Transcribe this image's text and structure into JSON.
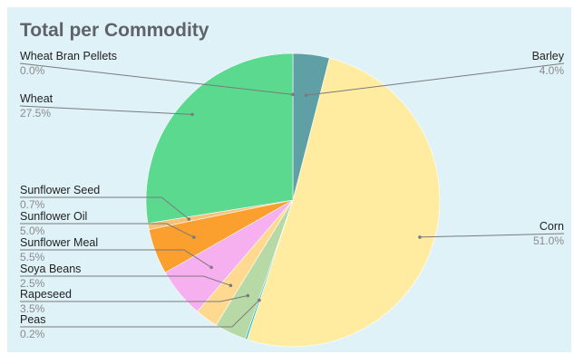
{
  "chart_data": {
    "type": "pie",
    "title": "Total per Commodity",
    "slices": [
      {
        "label": "Barley",
        "percent_label": "4.0%",
        "value": 4.0,
        "color": "#5f9fa6"
      },
      {
        "label": "Corn",
        "percent_label": "51.0%",
        "value": 51.0,
        "color": "#ffeca1"
      },
      {
        "label": "Peas",
        "percent_label": "0.2%",
        "value": 0.2,
        "color": "#1fb7c7"
      },
      {
        "label": "Rapeseed",
        "percent_label": "3.5%",
        "value": 3.5,
        "color": "#b7d9a5"
      },
      {
        "label": "Soya Beans",
        "percent_label": "2.5%",
        "value": 2.5,
        "color": "#ffd98f"
      },
      {
        "label": "Sunflower Meal",
        "percent_label": "5.5%",
        "value": 5.5,
        "color": "#f6b0f0"
      },
      {
        "label": "Sunflower Oil",
        "percent_label": "5.0%",
        "value": 5.0,
        "color": "#fb9f2f"
      },
      {
        "label": "Sunflower Seed",
        "percent_label": "0.7%",
        "value": 0.7,
        "color": "#f6c27a"
      },
      {
        "label": "Wheat",
        "percent_label": "27.5%",
        "value": 27.5,
        "color": "#5bd98f"
      },
      {
        "label": "Wheat Bran Pellets",
        "percent_label": "0.0%",
        "value": 0.0,
        "color": "#4f8f5f"
      }
    ],
    "legend": "none",
    "label_position": "outside with leader lines"
  }
}
